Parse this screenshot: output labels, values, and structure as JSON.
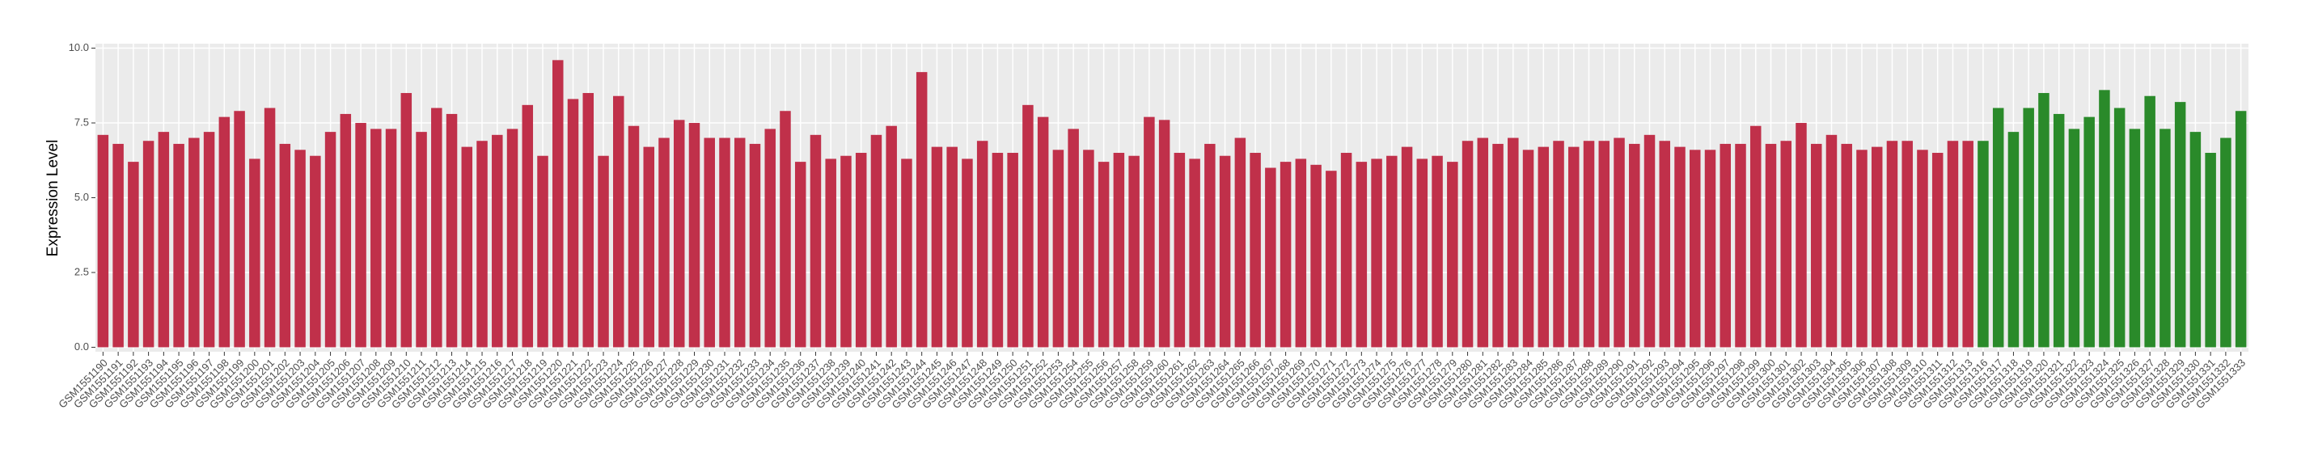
{
  "chart_data": {
    "type": "bar",
    "y_label": "Expression Level",
    "ylim": [
      -0.15,
      10.15
    ],
    "yticks": [
      {
        "value": 0,
        "label": "0.0"
      },
      {
        "value": 2.5,
        "label": "2.5"
      },
      {
        "value": 5,
        "label": "5.0"
      },
      {
        "value": 7.5,
        "label": "7.5"
      },
      {
        "value": 10,
        "label": "10.0"
      }
    ],
    "grid": true,
    "categories": [
      "GSM1551190",
      "GSM1551191",
      "GSM1551192",
      "GSM1551193",
      "GSM1551194",
      "GSM1551195",
      "GSM1551196",
      "GSM1551197",
      "GSM1551198",
      "GSM1551199",
      "GSM1551200",
      "GSM1551201",
      "GSM1551202",
      "GSM1551203",
      "GSM1551204",
      "GSM1551205",
      "GSM1551206",
      "GSM1551207",
      "GSM1551208",
      "GSM1551209",
      "GSM1551210",
      "GSM1551211",
      "GSM1551212",
      "GSM1551213",
      "GSM1551214",
      "GSM1551215",
      "GSM1551216",
      "GSM1551217",
      "GSM1551218",
      "GSM1551219",
      "GSM1551220",
      "GSM1551221",
      "GSM1551222",
      "GSM1551223",
      "GSM1551224",
      "GSM1551225",
      "GSM1551226",
      "GSM1551227",
      "GSM1551228",
      "GSM1551229",
      "GSM1551230",
      "GSM1551231",
      "GSM1551232",
      "GSM1551233",
      "GSM1551234",
      "GSM1551235",
      "GSM1551236",
      "GSM1551237",
      "GSM1551238",
      "GSM1551239",
      "GSM1551240",
      "GSM1551241",
      "GSM1551242",
      "GSM1551243",
      "GSM1551244",
      "GSM1551245",
      "GSM1551246",
      "GSM1551247",
      "GSM1551248",
      "GSM1551249",
      "GSM1551250",
      "GSM1551251",
      "GSM1551252",
      "GSM1551253",
      "GSM1551254",
      "GSM1551255",
      "GSM1551256",
      "GSM1551257",
      "GSM1551258",
      "GSM1551259",
      "GSM1551260",
      "GSM1551261",
      "GSM1551262",
      "GSM1551263",
      "GSM1551264",
      "GSM1551265",
      "GSM1551266",
      "GSM1551267",
      "GSM1551268",
      "GSM1551269",
      "GSM1551270",
      "GSM1551271",
      "GSM1551272",
      "GSM1551273",
      "GSM1551274",
      "GSM1551275",
      "GSM1551276",
      "GSM1551277",
      "GSM1551278",
      "GSM1551279",
      "GSM1551280",
      "GSM1551281",
      "GSM1551282",
      "GSM1551283",
      "GSM1551284",
      "GSM1551285",
      "GSM1551286",
      "GSM1551287",
      "GSM1551288",
      "GSM1551289",
      "GSM1551290",
      "GSM1551291",
      "GSM1551292",
      "GSM1551293",
      "GSM1551294",
      "GSM1551295",
      "GSM1551296",
      "GSM1551297",
      "GSM1551298",
      "GSM1551299",
      "GSM1551300",
      "GSM1551301",
      "GSM1551302",
      "GSM1551303",
      "GSM1551304",
      "GSM1551305",
      "GSM1551306",
      "GSM1551307",
      "GSM1551308",
      "GSM1551309",
      "GSM1551310",
      "GSM1551311",
      "GSM1551312",
      "GSM1551313",
      "GSM1551316",
      "GSM1551317",
      "GSM1551318",
      "GSM1551319",
      "GSM1551320",
      "GSM1551321",
      "GSM1551322",
      "GSM1551323",
      "GSM1551324",
      "GSM1551325",
      "GSM1551326",
      "GSM1551327",
      "GSM1551328",
      "GSM1551329",
      "GSM1551330",
      "GSM1551331",
      "GSM1551332",
      "GSM1551333"
    ],
    "series": [
      {
        "color": "#c0304a",
        "values": [
          7.1,
          6.8,
          6.2,
          6.9,
          7.2,
          6.8,
          7.0,
          7.2,
          7.7,
          7.9,
          6.3,
          8.0,
          6.8,
          6.6,
          6.4,
          7.2,
          7.8,
          7.5,
          7.3,
          7.3,
          8.5,
          7.2,
          8.0,
          7.8,
          6.7,
          6.9,
          7.1,
          7.3,
          8.1,
          6.4,
          9.6,
          8.3,
          8.5,
          6.4,
          8.4,
          7.4,
          6.7,
          7.0,
          7.6,
          7.5,
          7.0,
          7.0,
          7.0,
          6.8,
          7.3,
          7.9,
          6.2,
          7.1,
          6.3,
          6.4,
          6.5,
          7.1,
          7.4,
          6.3,
          9.2,
          6.7,
          6.7,
          6.3,
          6.9,
          6.5,
          6.5,
          8.1,
          7.7,
          6.6,
          7.3,
          6.6,
          6.2,
          6.5,
          6.4,
          7.7,
          7.6,
          6.5,
          6.3,
          6.8,
          6.4,
          7.0,
          6.5,
          6.0,
          6.2,
          6.3,
          6.1,
          5.9,
          6.5,
          6.2,
          6.3,
          6.4,
          6.7,
          6.3,
          6.4,
          6.2,
          6.9,
          7.0,
          6.8,
          7.0,
          6.6,
          6.7,
          6.9,
          6.7,
          6.9,
          6.9,
          7.0,
          6.8,
          7.1,
          6.9,
          6.7,
          6.6,
          6.6,
          6.8,
          6.8,
          7.4,
          6.8,
          6.9,
          7.5,
          6.8,
          7.1,
          6.8,
          6.6,
          6.7,
          6.9,
          6.9,
          6.6,
          6.5,
          6.9,
          6.9,
          null,
          null,
          null,
          null,
          null,
          null,
          null,
          null,
          null,
          null,
          null,
          null,
          null,
          null,
          null,
          null,
          null,
          null
        ]
      },
      {
        "color": "#2a8a2a",
        "values": [
          null,
          null,
          null,
          null,
          null,
          null,
          null,
          null,
          null,
          null,
          null,
          null,
          null,
          null,
          null,
          null,
          null,
          null,
          null,
          null,
          null,
          null,
          null,
          null,
          null,
          null,
          null,
          null,
          null,
          null,
          null,
          null,
          null,
          null,
          null,
          null,
          null,
          null,
          null,
          null,
          null,
          null,
          null,
          null,
          null,
          null,
          null,
          null,
          null,
          null,
          null,
          null,
          null,
          null,
          null,
          null,
          null,
          null,
          null,
          null,
          null,
          null,
          null,
          null,
          null,
          null,
          null,
          null,
          null,
          null,
          null,
          null,
          null,
          null,
          null,
          null,
          null,
          null,
          null,
          null,
          null,
          null,
          null,
          null,
          null,
          null,
          null,
          null,
          null,
          null,
          null,
          null,
          null,
          null,
          null,
          null,
          null,
          null,
          null,
          null,
          null,
          null,
          null,
          null,
          null,
          null,
          null,
          null,
          null,
          null,
          null,
          null,
          null,
          null,
          null,
          null,
          null,
          null,
          null,
          null,
          null,
          null,
          null,
          null,
          6.9,
          8.0,
          7.2,
          8.0,
          8.5,
          7.8,
          7.3,
          7.7,
          8.6,
          8.0,
          7.3,
          8.4,
          7.3,
          8.2,
          7.2,
          6.5,
          7.0,
          7.9
        ]
      }
    ]
  }
}
